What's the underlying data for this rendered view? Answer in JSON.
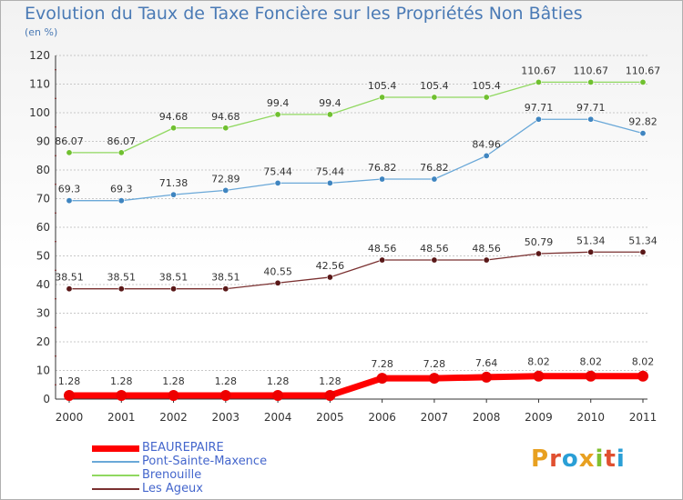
{
  "title": "Evolution du Taux de Taxe Foncière sur les Propriétés Non Bâties",
  "subtitle": "(en %)",
  "logo": {
    "text": "Proxiti"
  },
  "colors": {
    "grid": "#c8c8c8",
    "axis": "#333333",
    "label": "#333333",
    "legend_text": "#4466cc",
    "title": "#4a7ab5",
    "logo_letters": [
      "#e8a020",
      "#e05030",
      "#2a9fd6",
      "#e8a020",
      "#80c030",
      "#e05030",
      "#2a9fd6"
    ]
  },
  "chart_data": {
    "type": "line",
    "title": "Evolution du Taux de Taxe Foncière sur les Propriétés Non Bâties",
    "subtitle": "(en %)",
    "x": [
      "2000",
      "2001",
      "2002",
      "2003",
      "2004",
      "2005",
      "2006",
      "2007",
      "2008",
      "2009",
      "2010",
      "2011"
    ],
    "ylim": [
      0,
      120
    ],
    "yticks": [
      0,
      10,
      20,
      30,
      40,
      50,
      60,
      70,
      80,
      90,
      100,
      110,
      120
    ],
    "grid": "horizontal",
    "legend_position": "bottom-left",
    "series": [
      {
        "name": "Brenouille",
        "color": "#90d860",
        "marker": "#70c030",
        "width": 1.3,
        "values": [
          86.07,
          86.07,
          94.68,
          94.68,
          99.4,
          99.4,
          105.4,
          105.4,
          105.4,
          110.67,
          110.67,
          110.67
        ],
        "labels": [
          "86.07",
          "86.07",
          "94.68",
          "94.68",
          "99.4",
          "99.4",
          "105.4",
          "105.4",
          "105.4",
          "110.67",
          "110.67",
          "110.67"
        ]
      },
      {
        "name": "Pont-Sainte-Maxence",
        "color": "#6aa8d8",
        "marker": "#3f85c0",
        "width": 1.3,
        "values": [
          69.3,
          69.3,
          71.38,
          72.89,
          75.44,
          75.44,
          76.82,
          76.82,
          84.96,
          97.71,
          97.71,
          92.82
        ],
        "labels": [
          "69.3",
          "69.3",
          "71.38",
          "72.89",
          "75.44",
          "75.44",
          "76.82",
          "76.82",
          "84.96",
          "97.71",
          "97.71",
          "92.82"
        ]
      },
      {
        "name": "Les Ageux",
        "color": "#7a3030",
        "marker": "#5a1818",
        "width": 1.3,
        "values": [
          38.51,
          38.51,
          38.51,
          38.51,
          40.55,
          42.56,
          48.56,
          48.56,
          48.56,
          50.79,
          51.34,
          51.34
        ],
        "labels": [
          "38.51",
          "38.51",
          "38.51",
          "38.51",
          "40.55",
          "42.56",
          "48.56",
          "48.56",
          "48.56",
          "50.79",
          "51.34",
          "51.34"
        ]
      },
      {
        "name": "BEAUREPAIRE",
        "color": "#ff0000",
        "marker": "#ee0000",
        "width": 7,
        "values": [
          1.28,
          1.28,
          1.28,
          1.28,
          1.28,
          1.28,
          7.28,
          7.28,
          7.64,
          8.02,
          8.02,
          8.02
        ],
        "labels": [
          "1.28",
          "1.28",
          "1.28",
          "1.28",
          "1.28",
          "1.28",
          "7.28",
          "7.28",
          "7.64",
          "8.02",
          "8.02",
          "8.02"
        ]
      }
    ],
    "legend": [
      {
        "name": "BEAUREPAIRE",
        "color": "#ff0000",
        "width": 7
      },
      {
        "name": "Pont-Sainte-Maxence",
        "color": "#6aa8d8",
        "width": 2
      },
      {
        "name": "Brenouille",
        "color": "#90d860",
        "width": 2
      },
      {
        "name": "Les Ageux",
        "color": "#7a3030",
        "width": 2
      }
    ]
  }
}
